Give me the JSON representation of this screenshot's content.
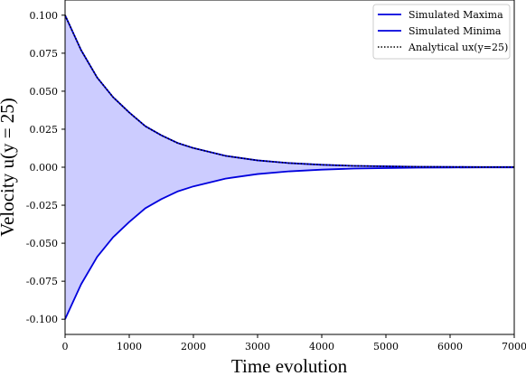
{
  "chart_data": {
    "type": "line",
    "title": "",
    "xlabel": "Time evolution",
    "ylabel": "Velocity u(y = 25)",
    "xlim": [
      0,
      7000
    ],
    "ylim": [
      -0.11,
      0.11
    ],
    "x_ticks": [
      0,
      1000,
      2000,
      3000,
      4000,
      5000,
      6000,
      7000
    ],
    "y_ticks": [
      -0.1,
      -0.075,
      -0.05,
      -0.025,
      0.0,
      0.025,
      0.05,
      0.075,
      0.1
    ],
    "x_tick_labels": [
      "0",
      "1000",
      "2000",
      "3000",
      "4000",
      "5000",
      "6000",
      "7000"
    ],
    "y_tick_labels": [
      "-0.100",
      "-0.075",
      "-0.050",
      "-0.025",
      "0.000",
      "0.025",
      "0.050",
      "0.075",
      "0.100"
    ],
    "grid": false,
    "legend_position": "top-right",
    "fill_between": {
      "upper": "Simulated Maxima",
      "lower": "Simulated Minima",
      "color": "#ccccff"
    },
    "series": [
      {
        "name": "Simulated Maxima",
        "style": "solid",
        "color": "#0000dd",
        "x": [
          0,
          250,
          500,
          750,
          1000,
          1250,
          1500,
          1750,
          2000,
          2500,
          3000,
          3500,
          4000,
          4500,
          5000,
          5500,
          6000,
          6500,
          7000
        ],
        "y": [
          0.1,
          0.077,
          0.059,
          0.046,
          0.036,
          0.027,
          0.021,
          0.016,
          0.0126,
          0.0075,
          0.0045,
          0.0027,
          0.0016,
          0.0009,
          0.0006,
          0.0003,
          0.0002,
          0.0001,
          0.0001
        ]
      },
      {
        "name": "Simulated Minima",
        "style": "solid",
        "color": "#0000dd",
        "x": [
          0,
          250,
          500,
          750,
          1000,
          1250,
          1500,
          1750,
          2000,
          2500,
          3000,
          3500,
          4000,
          4500,
          5000,
          5500,
          6000,
          6500,
          7000
        ],
        "y": [
          -0.1,
          -0.077,
          -0.059,
          -0.046,
          -0.036,
          -0.027,
          -0.021,
          -0.016,
          -0.0126,
          -0.0075,
          -0.0045,
          -0.0027,
          -0.0016,
          -0.0009,
          -0.0006,
          -0.0003,
          -0.0002,
          -0.0001,
          -0.0001
        ]
      },
      {
        "name": "Analytical ux(y=25)",
        "style": "dotted",
        "color": "#000000",
        "x": [
          0,
          250,
          500,
          750,
          1000,
          1250,
          1500,
          1750,
          2000,
          2500,
          3000,
          3500,
          4000,
          4500,
          5000,
          5500,
          6000,
          6500,
          7000
        ],
        "y": [
          0.1,
          0.077,
          0.059,
          0.046,
          0.036,
          0.027,
          0.021,
          0.016,
          0.0126,
          0.0075,
          0.0045,
          0.0027,
          0.0016,
          0.0009,
          0.0006,
          0.0003,
          0.0002,
          0.0001,
          0.0001
        ]
      }
    ]
  }
}
